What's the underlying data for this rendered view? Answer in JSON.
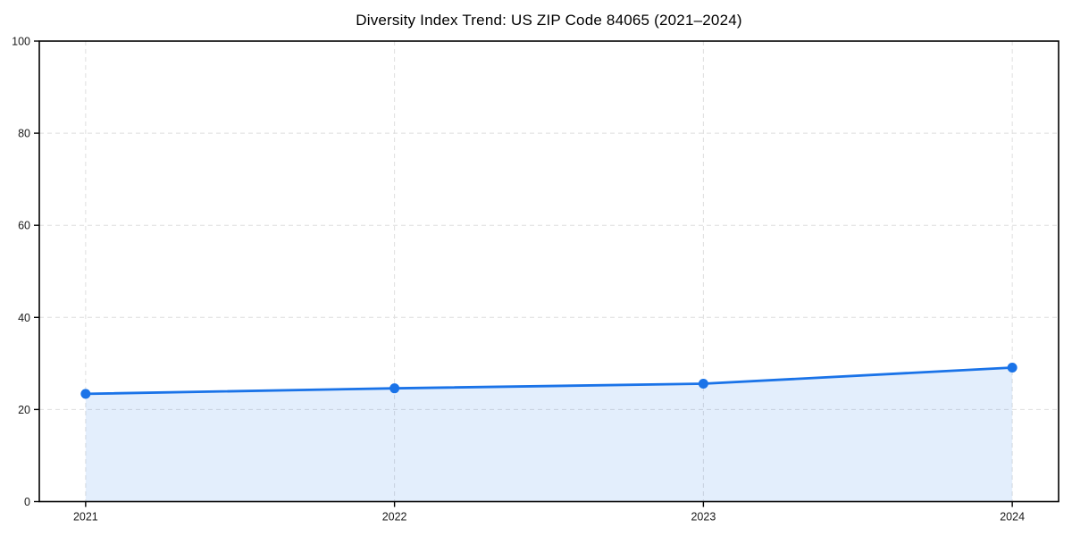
{
  "colors": {
    "line": "#1a73e8",
    "marker": "#1a73e8",
    "fill": "#1a73e8",
    "fill_opacity": 0.12,
    "axis": "#000000",
    "grid": "#dedede",
    "tick_label": "#1a1a1a",
    "title": "#000000"
  },
  "chart_data": {
    "type": "area",
    "title": "Diversity Index Trend: US ZIP Code 84065 (2021–2024)",
    "xlabel": "",
    "ylabel": "",
    "x": [
      2021,
      2022,
      2023,
      2024
    ],
    "series": [
      {
        "name": "Diversity Index",
        "values": [
          23.4,
          24.6,
          25.6,
          29.1
        ]
      }
    ],
    "xticks": [
      "2021",
      "2022",
      "2023",
      "2024"
    ],
    "xtick_values": [
      2021,
      2022,
      2023,
      2024
    ],
    "yticks": [
      "0",
      "20",
      "40",
      "60",
      "80",
      "100"
    ],
    "ytick_values": [
      0,
      20,
      40,
      60,
      80,
      100
    ],
    "xlim": [
      2020.85,
      2024.15
    ],
    "ylim": [
      0,
      100
    ],
    "grid": true,
    "grid_style": "dashed",
    "legend": "none",
    "marker": "circle"
  }
}
